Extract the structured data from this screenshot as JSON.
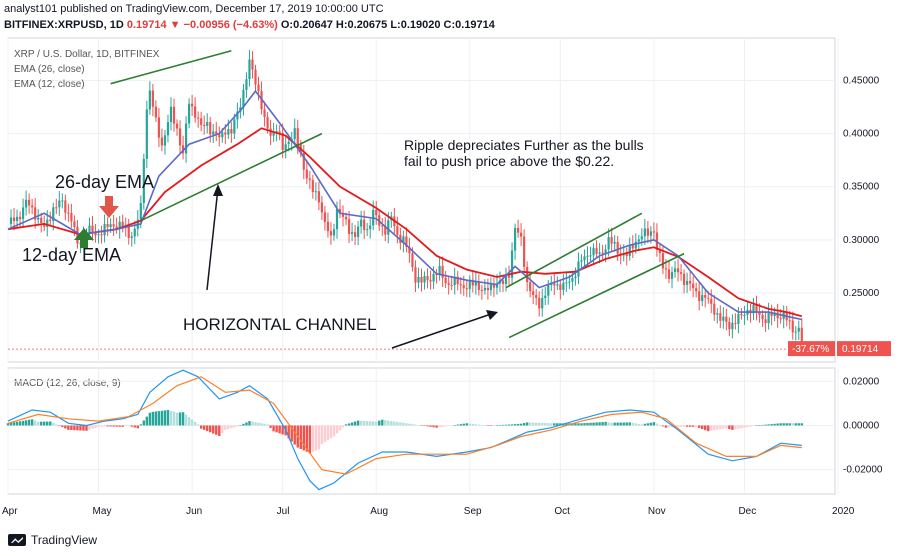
{
  "header": {
    "line1": "analyst101 published on TradingView.com, December 17, 2019 10:00:00 UTC",
    "symbol": "BITFINEX:XRPUSD, 1D",
    "change": "0.19714 ▼ −0.00956 (−4.63%)",
    "ohlc": "O:0.20647 H:0.20675 L:0.19020 C:0.19714"
  },
  "footer": {
    "brand": "TradingView"
  },
  "colors": {
    "up": "#26a69a",
    "down": "#ef5350",
    "ema26": "#e3191b",
    "ema12": "#5a6ac7",
    "trend": "#2e7d32",
    "macd": "#2196f3",
    "signal": "#ff7f27",
    "hist_up": "#26a69a",
    "hist_up_light": "#b2dfdb",
    "hist_down": "#ef5350",
    "hist_down_light": "#ffcdd2"
  },
  "chart_data": {
    "type": "candlestick",
    "title": "XRP / U.S. Dollar, 1D, BITFINEX",
    "legend": [
      "EMA (26, close)",
      "EMA (12, close)"
    ],
    "price_axis": {
      "ticks": [
        0.45,
        0.4,
        0.35,
        0.3,
        0.25
      ],
      "labels": [
        "0.45000",
        "0.40000",
        "0.35000",
        "0.30000",
        "0.25000"
      ],
      "range": [
        0.185,
        0.49
      ]
    },
    "x_axis": {
      "labels": [
        "Apr",
        "May",
        "Jun",
        "Jul",
        "Aug",
        "Sep",
        "Oct",
        "Nov",
        "Dec",
        "2020"
      ],
      "index": [
        0,
        30,
        61,
        91,
        122,
        153,
        183,
        214,
        244,
        275
      ]
    },
    "close_path": [
      [
        0,
        0.315
      ],
      [
        3,
        0.32
      ],
      [
        6,
        0.335
      ],
      [
        9,
        0.325
      ],
      [
        12,
        0.31
      ],
      [
        15,
        0.33
      ],
      [
        18,
        0.335
      ],
      [
        21,
        0.32
      ],
      [
        23,
        0.295
      ],
      [
        26,
        0.31
      ],
      [
        29,
        0.305
      ],
      [
        32,
        0.31
      ],
      [
        35,
        0.315
      ],
      [
        38,
        0.312
      ],
      [
        40,
        0.305
      ],
      [
        42,
        0.308
      ],
      [
        44,
        0.33
      ],
      [
        45,
        0.38
      ],
      [
        46,
        0.425
      ],
      [
        47,
        0.44
      ],
      [
        49,
        0.41
      ],
      [
        51,
        0.39
      ],
      [
        54,
        0.42
      ],
      [
        56,
        0.405
      ],
      [
        58,
        0.38
      ],
      [
        60,
        0.43
      ],
      [
        62,
        0.42
      ],
      [
        64,
        0.405
      ],
      [
        66,
        0.41
      ],
      [
        68,
        0.4
      ],
      [
        70,
        0.395
      ],
      [
        72,
        0.405
      ],
      [
        74,
        0.4
      ],
      [
        76,
        0.42
      ],
      [
        78,
        0.44
      ],
      [
        80,
        0.465
      ],
      [
        81,
        0.46
      ],
      [
        83,
        0.44
      ],
      [
        85,
        0.41
      ],
      [
        87,
        0.4
      ],
      [
        89,
        0.405
      ],
      [
        91,
        0.385
      ],
      [
        93,
        0.395
      ],
      [
        95,
        0.4
      ],
      [
        97,
        0.38
      ],
      [
        99,
        0.36
      ],
      [
        101,
        0.345
      ],
      [
        103,
        0.34
      ],
      [
        105,
        0.315
      ],
      [
        107,
        0.3
      ],
      [
        109,
        0.33
      ],
      [
        111,
        0.32
      ],
      [
        113,
        0.31
      ],
      [
        115,
        0.305
      ],
      [
        117,
        0.315
      ],
      [
        119,
        0.31
      ],
      [
        121,
        0.325
      ],
      [
        123,
        0.315
      ],
      [
        125,
        0.31
      ],
      [
        127,
        0.32
      ],
      [
        129,
        0.305
      ],
      [
        131,
        0.3
      ],
      [
        133,
        0.285
      ],
      [
        135,
        0.265
      ],
      [
        137,
        0.26
      ],
      [
        140,
        0.265
      ],
      [
        143,
        0.27
      ],
      [
        146,
        0.258
      ],
      [
        149,
        0.26
      ],
      [
        152,
        0.255
      ],
      [
        155,
        0.26
      ],
      [
        158,
        0.25
      ],
      [
        161,
        0.26
      ],
      [
        164,
        0.258
      ],
      [
        166,
        0.27
      ],
      [
        168,
        0.31
      ],
      [
        170,
        0.3
      ],
      [
        172,
        0.26
      ],
      [
        174,
        0.245
      ],
      [
        176,
        0.24
      ],
      [
        178,
        0.25
      ],
      [
        181,
        0.26
      ],
      [
        184,
        0.255
      ],
      [
        187,
        0.265
      ],
      [
        190,
        0.28
      ],
      [
        193,
        0.29
      ],
      [
        196,
        0.285
      ],
      [
        199,
        0.3
      ],
      [
        202,
        0.29
      ],
      [
        205,
        0.285
      ],
      [
        208,
        0.3
      ],
      [
        211,
        0.305
      ],
      [
        214,
        0.31
      ],
      [
        215,
        0.29
      ],
      [
        217,
        0.275
      ],
      [
        219,
        0.268
      ],
      [
        222,
        0.27
      ],
      [
        225,
        0.26
      ],
      [
        228,
        0.25
      ],
      [
        231,
        0.245
      ],
      [
        234,
        0.235
      ],
      [
        236,
        0.225
      ],
      [
        239,
        0.22
      ],
      [
        242,
        0.225
      ],
      [
        245,
        0.235
      ],
      [
        248,
        0.232
      ],
      [
        251,
        0.225
      ],
      [
        254,
        0.23
      ],
      [
        257,
        0.228
      ],
      [
        260,
        0.217
      ],
      [
        262,
        0.215
      ],
      [
        263,
        0.197
      ]
    ],
    "ema26_line": [
      [
        0,
        0.31
      ],
      [
        12,
        0.315
      ],
      [
        24,
        0.305
      ],
      [
        36,
        0.31
      ],
      [
        44,
        0.318
      ],
      [
        52,
        0.345
      ],
      [
        64,
        0.37
      ],
      [
        76,
        0.39
      ],
      [
        84,
        0.405
      ],
      [
        92,
        0.398
      ],
      [
        100,
        0.378
      ],
      [
        110,
        0.35
      ],
      [
        122,
        0.33
      ],
      [
        132,
        0.31
      ],
      [
        142,
        0.285
      ],
      [
        152,
        0.272
      ],
      [
        162,
        0.265
      ],
      [
        170,
        0.27
      ],
      [
        178,
        0.268
      ],
      [
        188,
        0.27
      ],
      [
        198,
        0.282
      ],
      [
        208,
        0.29
      ],
      [
        214,
        0.293
      ],
      [
        222,
        0.284
      ],
      [
        232,
        0.265
      ],
      [
        242,
        0.245
      ],
      [
        252,
        0.235
      ],
      [
        258,
        0.232
      ],
      [
        263,
        0.228
      ]
    ],
    "ema12_line": [
      [
        0,
        0.31
      ],
      [
        12,
        0.325
      ],
      [
        24,
        0.305
      ],
      [
        36,
        0.31
      ],
      [
        44,
        0.315
      ],
      [
        50,
        0.36
      ],
      [
        60,
        0.39
      ],
      [
        70,
        0.4
      ],
      [
        78,
        0.425
      ],
      [
        82,
        0.44
      ],
      [
        90,
        0.41
      ],
      [
        100,
        0.37
      ],
      [
        110,
        0.325
      ],
      [
        122,
        0.32
      ],
      [
        132,
        0.295
      ],
      [
        142,
        0.268
      ],
      [
        152,
        0.262
      ],
      [
        162,
        0.258
      ],
      [
        168,
        0.275
      ],
      [
        176,
        0.255
      ],
      [
        186,
        0.265
      ],
      [
        196,
        0.285
      ],
      [
        206,
        0.295
      ],
      [
        214,
        0.3
      ],
      [
        222,
        0.285
      ],
      [
        232,
        0.25
      ],
      [
        242,
        0.232
      ],
      [
        252,
        0.232
      ],
      [
        258,
        0.228
      ],
      [
        263,
        0.225
      ]
    ],
    "trendlines": [
      [
        [
          34,
          0.447
        ],
        [
          74,
          0.478
        ]
      ],
      [
        [
          44,
          0.318
        ],
        [
          104,
          0.4
        ]
      ],
      [
        [
          165,
          0.255
        ],
        [
          210,
          0.325
        ]
      ],
      [
        [
          166,
          0.208
        ],
        [
          224,
          0.287
        ]
      ]
    ],
    "last_price": {
      "label": "0.19714",
      "change_label": "-37.67%",
      "value": 0.19714
    },
    "annotations": {
      "ema26": "26-day EMA",
      "ema12": "12-day EMA",
      "note_line1": "Ripple depreciates Further as the bulls",
      "note_line2": "fail to push price above the $0.22.",
      "channel": "HORIZONTAL CHANNEL"
    },
    "macd": {
      "title": "MACD (12, 26, close, 9)",
      "axis_ticks": [
        0.02,
        0.0,
        -0.02
      ],
      "axis_labels": [
        "0.02000",
        "0.00000",
        "-0.02000"
      ],
      "range": [
        -0.031,
        0.026
      ],
      "macd_line": [
        [
          0,
          0.002
        ],
        [
          8,
          0.007
        ],
        [
          14,
          0.006
        ],
        [
          20,
          0.001
        ],
        [
          26,
          0.0
        ],
        [
          32,
          0.002
        ],
        [
          38,
          0.003
        ],
        [
          43,
          0.005
        ],
        [
          47,
          0.015
        ],
        [
          53,
          0.022
        ],
        [
          58,
          0.025
        ],
        [
          63,
          0.022
        ],
        [
          70,
          0.012
        ],
        [
          76,
          0.015
        ],
        [
          80,
          0.018
        ],
        [
          86,
          0.012
        ],
        [
          92,
          -0.002
        ],
        [
          96,
          -0.015
        ],
        [
          100,
          -0.025
        ],
        [
          103,
          -0.029
        ],
        [
          108,
          -0.026
        ],
        [
          116,
          -0.017
        ],
        [
          124,
          -0.012
        ],
        [
          132,
          -0.012
        ],
        [
          142,
          -0.014
        ],
        [
          152,
          -0.012
        ],
        [
          160,
          -0.01
        ],
        [
          167,
          -0.006
        ],
        [
          172,
          -0.003
        ],
        [
          180,
          -0.001
        ],
        [
          190,
          0.003
        ],
        [
          198,
          0.006
        ],
        [
          206,
          0.007
        ],
        [
          214,
          0.006
        ],
        [
          222,
          -0.002
        ],
        [
          232,
          -0.013
        ],
        [
          240,
          -0.016
        ],
        [
          248,
          -0.014
        ],
        [
          256,
          -0.008
        ],
        [
          263,
          -0.009
        ]
      ],
      "signal_line": [
        [
          0,
          0.001
        ],
        [
          10,
          0.005
        ],
        [
          20,
          0.003
        ],
        [
          30,
          0.002
        ],
        [
          40,
          0.004
        ],
        [
          48,
          0.01
        ],
        [
          56,
          0.018
        ],
        [
          64,
          0.022
        ],
        [
          72,
          0.015
        ],
        [
          80,
          0.016
        ],
        [
          88,
          0.01
        ],
        [
          96,
          -0.005
        ],
        [
          104,
          -0.02
        ],
        [
          112,
          -0.022
        ],
        [
          122,
          -0.015
        ],
        [
          132,
          -0.013
        ],
        [
          142,
          -0.013
        ],
        [
          152,
          -0.013
        ],
        [
          162,
          -0.009
        ],
        [
          170,
          -0.005
        ],
        [
          180,
          -0.002
        ],
        [
          190,
          0.002
        ],
        [
          200,
          0.005
        ],
        [
          210,
          0.006
        ],
        [
          218,
          0.003
        ],
        [
          228,
          -0.008
        ],
        [
          238,
          -0.014
        ],
        [
          248,
          -0.014
        ],
        [
          256,
          -0.009
        ],
        [
          263,
          -0.01
        ]
      ]
    }
  }
}
